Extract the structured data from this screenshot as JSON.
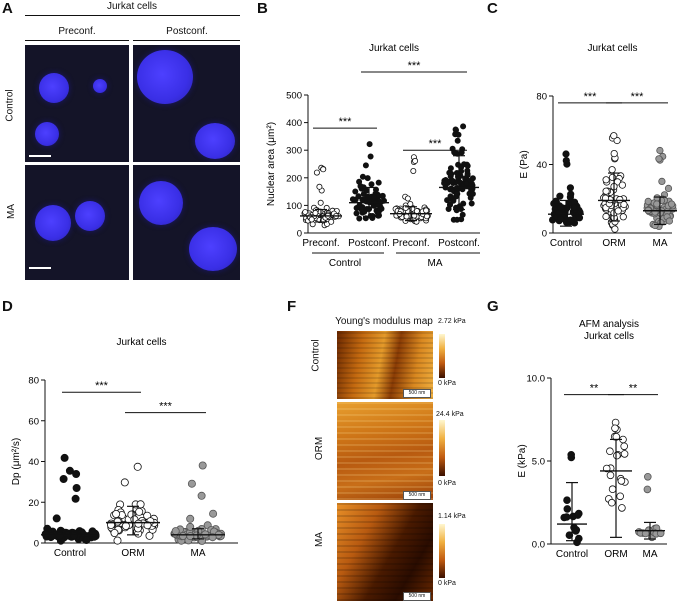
{
  "panels": {
    "A": {
      "label": "A",
      "title": "Jurkat cells",
      "cols": [
        "Preconf.",
        "Postconf."
      ],
      "rows": [
        "Control",
        "MA"
      ]
    },
    "B": {
      "label": "B"
    },
    "C": {
      "label": "C"
    },
    "D": {
      "label": "D"
    },
    "F": {
      "label": "F",
      "title": "Young's modulus map",
      "rows": [
        "Control",
        "ORM",
        "MA"
      ],
      "colorbar_max": [
        "2.72 kPa",
        "24.4 kPa",
        "1.14 kPa"
      ],
      "colorbar_min": "0 kPa",
      "scalebar_label": "500 nm"
    },
    "G": {
      "label": "G"
    }
  },
  "chart_data": [
    {
      "id": "B",
      "type": "scatter",
      "title": "Jurkat cells",
      "ylabel": "Nuclear area (μm²)",
      "ylim": [
        0,
        500
      ],
      "yticks": [
        "0",
        "100",
        "200",
        "300",
        "400",
        "500"
      ],
      "categories": [
        "Preconf.",
        "Postconf.",
        "Preconf.",
        "Postconf."
      ],
      "groups": [
        "Control",
        "MA"
      ],
      "means": [
        62,
        110,
        70,
        165
      ],
      "sd_low": [
        40,
        60,
        45,
        85
      ],
      "sd_high": [
        85,
        165,
        95,
        280
      ],
      "fills": [
        "open",
        "filled",
        "open",
        "filled"
      ],
      "significance": [
        {
          "from": 0,
          "to": 1,
          "label": "***"
        },
        {
          "from": 2,
          "to": 3,
          "label": "***"
        },
        {
          "from": 1,
          "to": 3,
          "label": "***"
        }
      ]
    },
    {
      "id": "C",
      "type": "scatter",
      "title": "Jurkat cells",
      "ylabel": "E (Pa)",
      "ylim": [
        0,
        80
      ],
      "yticks": [
        "0",
        "40",
        "80"
      ],
      "categories": [
        "Control",
        "ORM",
        "MA"
      ],
      "means": [
        11,
        19,
        13
      ],
      "sd_low": [
        4,
        7,
        5
      ],
      "sd_high": [
        19,
        35,
        21
      ],
      "fills": [
        "filled",
        "open",
        "gray"
      ],
      "significance": [
        {
          "from": 0,
          "to": 1,
          "label": "***"
        },
        {
          "from": 1,
          "to": 2,
          "label": "***"
        }
      ]
    },
    {
      "id": "D",
      "type": "scatter",
      "title": "Jurkat cells",
      "ylabel": "Dp (μm²/s)",
      "ylim": [
        0,
        80
      ],
      "yticks": [
        "0",
        "20",
        "40",
        "60",
        "80"
      ],
      "categories": [
        "Control",
        "ORM",
        "MA"
      ],
      "means": [
        4,
        10,
        4
      ],
      "sd_low": [
        2,
        4,
        2
      ],
      "sd_high": [
        6,
        18,
        7
      ],
      "fills": [
        "filled",
        "open",
        "gray"
      ],
      "significance": [
        {
          "from": 0,
          "to": 1,
          "label": "***"
        },
        {
          "from": 1,
          "to": 2,
          "label": "***"
        }
      ]
    },
    {
      "id": "G",
      "type": "scatter",
      "title": "AFM analysis",
      "subtitle": "Jurkat cells",
      "ylabel": "E (kPa)",
      "ylim": [
        0,
        10
      ],
      "yticks": [
        "0.0",
        "5.0",
        "10.0"
      ],
      "categories": [
        "Control",
        "ORM",
        "MA"
      ],
      "means": [
        1.2,
        4.4,
        0.8
      ],
      "sd_low": [
        0.2,
        0.4,
        0.3
      ],
      "sd_high": [
        3.7,
        6.3,
        1.3
      ],
      "fills": [
        "filled",
        "open",
        "gray"
      ],
      "significance": [
        {
          "from": 0,
          "to": 1,
          "label": "**"
        },
        {
          "from": 1,
          "to": 2,
          "label": "**"
        }
      ]
    }
  ]
}
